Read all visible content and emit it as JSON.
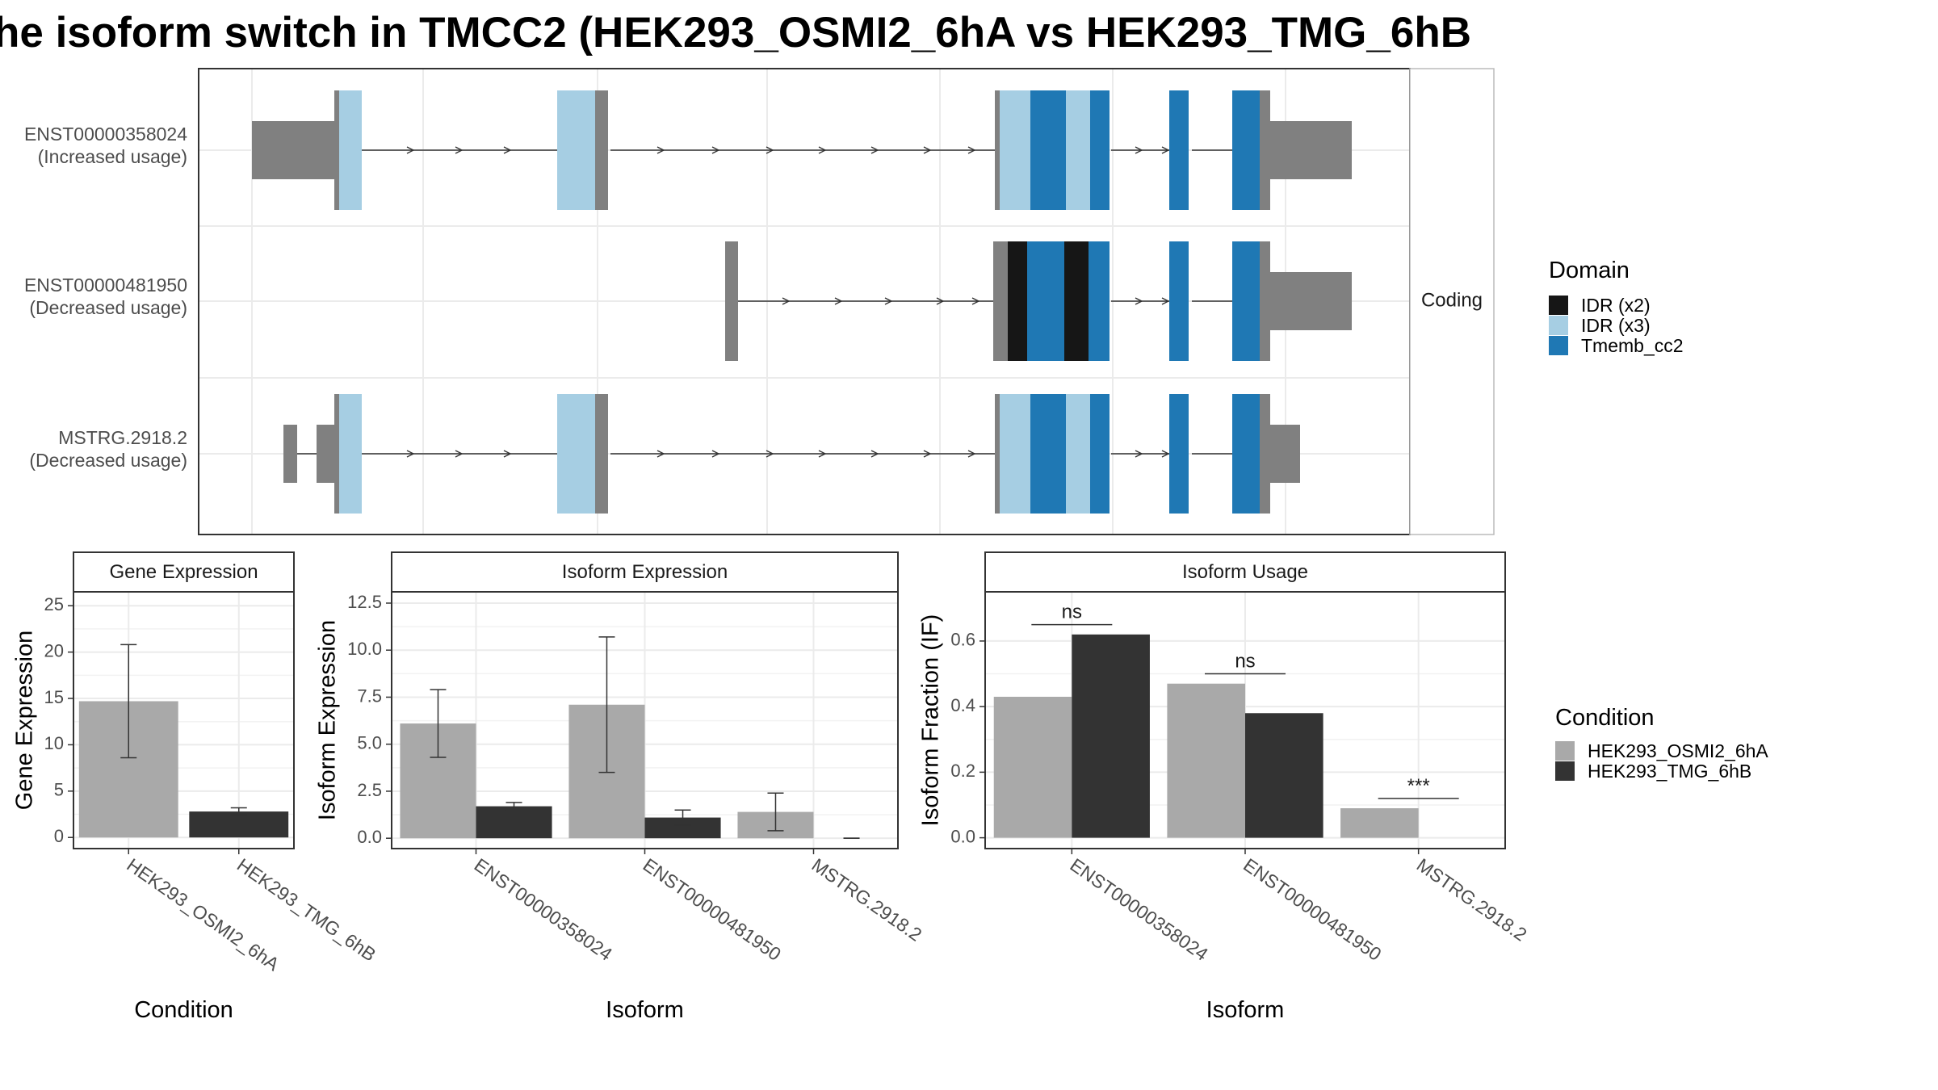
{
  "title": "he isoform switch in TMCC2 (HEK293_OSMI2_6hA vs HEK293_TMG_6hB",
  "colors": {
    "utr": "#808080",
    "idr_x2": "#161616",
    "idr_x3": "#a6cee3",
    "tmemb": "#1f78b4",
    "cond_a": "#a9a9a9",
    "cond_b": "#333333",
    "grid": "#ebebeb"
  },
  "transcripts": {
    "facet_label": "Coding",
    "rows": [
      {
        "id": "ENST00000358024",
        "usage": "(Increased usage)"
      },
      {
        "id": "ENST00000481950",
        "usage": "(Decreased usage)"
      },
      {
        "id": "MSTRG.2918.2",
        "usage": "(Decreased usage)"
      }
    ]
  },
  "domain_legend": {
    "title": "Domain",
    "items": [
      {
        "label": "IDR (x2)",
        "color": "#161616"
      },
      {
        "label": "IDR (x3)",
        "color": "#a6cee3"
      },
      {
        "label": "Tmemb_cc2",
        "color": "#1f78b4"
      }
    ]
  },
  "condition_legend": {
    "title": "Condition",
    "items": [
      {
        "label": "HEK293_OSMI2_6hA",
        "color": "#a9a9a9"
      },
      {
        "label": "HEK293_TMG_6hB",
        "color": "#333333"
      }
    ]
  },
  "chart_data": [
    {
      "type": "bar",
      "title": "Gene Expression",
      "xlabel": "Condition",
      "ylabel": "Gene Expression",
      "categories": [
        "HEK293_OSMI2_6hA",
        "HEK293_TMG_6hB"
      ],
      "values": [
        14.7,
        2.8
      ],
      "errors_low": [
        8.6,
        2.4
      ],
      "errors_high": [
        20.8,
        3.2
      ],
      "ylim": [
        -1.2,
        26.5
      ],
      "yticks": [
        0,
        5,
        10,
        15,
        20,
        25
      ],
      "ytick_labels": [
        "0",
        "5",
        "10",
        "15",
        "20",
        "25"
      ]
    },
    {
      "type": "bar",
      "title": "Isoform Expression",
      "xlabel": "Isoform",
      "ylabel": "Isoform Expression",
      "categories": [
        "ENST00000358024",
        "ENST00000481950",
        "MSTRG.2918.2"
      ],
      "series": [
        {
          "name": "HEK293_OSMI2_6hA",
          "values": [
            6.1,
            7.1,
            1.4
          ],
          "errors_low": [
            4.3,
            3.5,
            0.4
          ],
          "errors_high": [
            7.9,
            10.7,
            2.4
          ]
        },
        {
          "name": "HEK293_TMG_6hB",
          "values": [
            1.7,
            1.1,
            0.0
          ],
          "errors_low": [
            1.5,
            0.7,
            0.0
          ],
          "errors_high": [
            1.9,
            1.5,
            0.0
          ]
        }
      ],
      "ylim": [
        -0.55,
        13.1
      ],
      "yticks": [
        0,
        2.5,
        5,
        7.5,
        10,
        12.5
      ],
      "ytick_labels": [
        "0.0",
        "2.5",
        "5.0",
        "7.5",
        "10.0",
        "12.5"
      ]
    },
    {
      "type": "bar",
      "title": "Isoform Usage",
      "xlabel": "Isoform",
      "ylabel": "Isoform Fraction (IF)",
      "categories": [
        "ENST00000358024",
        "ENST00000481950",
        "MSTRG.2918.2"
      ],
      "series": [
        {
          "name": "HEK293_OSMI2_6hA",
          "values": [
            0.43,
            0.47,
            0.09
          ]
        },
        {
          "name": "HEK293_TMG_6hB",
          "values": [
            0.62,
            0.38,
            0.0
          ]
        }
      ],
      "significance": [
        "ns",
        "ns",
        "***"
      ],
      "significance_y": [
        0.65,
        0.5,
        0.12
      ],
      "ylim": [
        -0.033,
        0.75
      ],
      "yticks": [
        0,
        0.2,
        0.4,
        0.6
      ],
      "ytick_labels": [
        "0.0",
        "0.2",
        "0.4",
        "0.6"
      ]
    }
  ]
}
